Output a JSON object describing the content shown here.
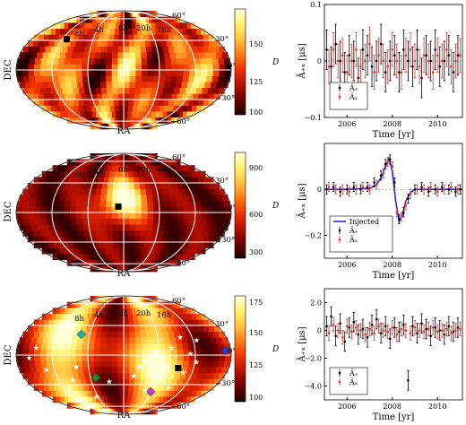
{
  "figure": {
    "colors": {
      "heat": [
        "#200000",
        "#6e0000",
        "#b81000",
        "#f03200",
        "#ff7a18",
        "#ffc23a",
        "#fff36e",
        "#ffffd8"
      ],
      "series_plus": "#000000",
      "series_cross": "#e8302a",
      "injected": "#1f2be6",
      "grid": "#ffffff",
      "star": "#ffffff",
      "pulsar_colors": [
        "#1fb09a",
        "#1a8c2a",
        "#c040c0",
        "#1f40d0"
      ]
    },
    "skymaps": [
      {
        "id": "top",
        "ylabel": "DEC",
        "xlabel": "RA",
        "ra_labels": [
          "8h",
          "4h",
          "0h",
          "20h",
          "16h"
        ],
        "dec_labels": [
          "60°",
          "30°",
          "0°",
          "−30°",
          "−60°"
        ],
        "colorbar": {
          "label": "D",
          "ticks": [
            "150",
            "125",
            "100"
          ]
        },
        "markers": [
          {
            "type": "square",
            "color": "#000000"
          }
        ]
      },
      {
        "id": "middle",
        "ylabel": "DEC",
        "xlabel": "RA",
        "ra_labels": [
          "8h",
          "4h",
          "0h",
          "20h",
          "16h"
        ],
        "dec_labels": [
          "60°",
          "30°",
          "0°",
          "−30°",
          "−60°"
        ],
        "colorbar": {
          "label": "D",
          "ticks": [
            "900",
            "600",
            "300"
          ]
        },
        "markers": [
          {
            "type": "square",
            "color": "#000000"
          }
        ]
      },
      {
        "id": "bottom",
        "ylabel": "DEC",
        "xlabel": "RA",
        "ra_labels": [
          "8h",
          "4h",
          "0h",
          "20h",
          "16h"
        ],
        "dec_labels": [
          "60°",
          "30°",
          "0°",
          "−30°",
          "−60°"
        ],
        "colorbar": {
          "label": "D",
          "ticks": [
            "175",
            "150",
            "125",
            "100"
          ]
        },
        "markers": [
          {
            "type": "square",
            "color": "#000000"
          },
          {
            "type": "diamond",
            "color": "#1fb09a"
          },
          {
            "type": "diamond",
            "color": "#1a8c2a"
          },
          {
            "type": "diamond",
            "color": "#c040c0"
          },
          {
            "type": "diamond",
            "color": "#1f40d0"
          },
          {
            "type": "star",
            "count": 22,
            "color": "#ffffff"
          }
        ]
      }
    ]
  },
  "chart_data": [
    {
      "type": "scatter",
      "title": "",
      "xlabel": "Time [yr]",
      "ylabel": "Â₊ₓ [μs]",
      "xlim": [
        2005,
        2011.1
      ],
      "ylim": [
        -0.1,
        0.1
      ],
      "xticks": [
        "2006",
        "2008",
        "2010"
      ],
      "yticks": [
        "0.1",
        "0",
        "−0.1"
      ],
      "legend": {
        "placement": "lower-left",
        "entries": [
          "Â₊",
          "Âₓ"
        ]
      },
      "series": [
        {
          "name": "Â₊",
          "color": "#000000",
          "error_bars": true,
          "x": [
            2005.1,
            2005.3,
            2005.5,
            2005.7,
            2005.9,
            2006.1,
            2006.3,
            2006.5,
            2006.7,
            2006.9,
            2007.1,
            2007.3,
            2007.5,
            2007.7,
            2007.9,
            2008.1,
            2008.3,
            2008.5,
            2008.7,
            2008.9,
            2009.1,
            2009.3,
            2009.5,
            2009.7,
            2009.9,
            2010.1,
            2010.3,
            2010.5,
            2010.7,
            2010.9
          ],
          "y": [
            0.02,
            -0.01,
            0.03,
            0.0,
            -0.02,
            0.01,
            0.0,
            -0.03,
            0.02,
            0.01,
            -0.01,
            0.0,
            0.03,
            -0.02,
            0.0,
            0.01,
            -0.02,
            0.02,
            0.0,
            -0.01,
            0.02,
            -0.03,
            0.01,
            0.0,
            0.02,
            -0.01,
            0.0,
            0.01,
            -0.02,
            0.01
          ],
          "err": 0.035
        },
        {
          "name": "Âₓ",
          "color": "#e8302a",
          "error_bars": true,
          "x": [
            2005.2,
            2005.4,
            2005.6,
            2005.8,
            2006.0,
            2006.2,
            2006.4,
            2006.6,
            2006.8,
            2007.0,
            2007.2,
            2007.4,
            2007.6,
            2007.8,
            2008.0,
            2008.2,
            2008.4,
            2008.6,
            2008.8,
            2009.0,
            2009.2,
            2009.4,
            2009.6,
            2009.8,
            2010.0,
            2010.2,
            2010.4,
            2010.6,
            2010.8,
            2011.0
          ],
          "y": [
            -0.01,
            0.02,
            0.0,
            0.01,
            -0.02,
            0.0,
            0.02,
            -0.01,
            0.0,
            0.03,
            -0.02,
            0.01,
            0.0,
            -0.01,
            0.02,
            0.0,
            -0.02,
            0.01,
            0.02,
            0.0,
            -0.01,
            0.01,
            0.0,
            -0.02,
            0.01,
            0.0,
            0.02,
            -0.01,
            0.0,
            0.01
          ],
          "err": 0.03
        }
      ]
    },
    {
      "type": "scatter",
      "title": "",
      "xlabel": "Time [yr]",
      "ylabel": "Â₊ₓ [μs]",
      "xlim": [
        2005,
        2011.1
      ],
      "ylim": [
        -0.3,
        0.2
      ],
      "xticks": [
        "2006",
        "2008",
        "2010"
      ],
      "yticks": [
        "0",
        "−0.2"
      ],
      "legend": {
        "placement": "lower-left",
        "entries": [
          "Injected",
          "Â₊",
          "Âₓ"
        ]
      },
      "series": [
        {
          "name": "Injected",
          "color": "#1f2be6",
          "line": true,
          "x": [
            2005.0,
            2006.0,
            2007.0,
            2007.3,
            2007.5,
            2007.7,
            2007.85,
            2008.0,
            2008.15,
            2008.3,
            2008.45,
            2008.6,
            2008.8,
            2009.0,
            2009.5,
            2010.0,
            2011.1
          ],
          "y": [
            0.0,
            0.0,
            0.005,
            0.02,
            0.05,
            0.1,
            0.135,
            0.08,
            -0.05,
            -0.14,
            -0.11,
            -0.05,
            -0.015,
            0.0,
            0.0,
            0.0,
            0.0
          ]
        },
        {
          "name": "Â₊",
          "color": "#000000",
          "error_bars": true,
          "x": [
            2005.1,
            2005.4,
            2005.7,
            2006.0,
            2006.3,
            2006.6,
            2006.9,
            2007.2,
            2007.5,
            2007.7,
            2007.9,
            2008.1,
            2008.3,
            2008.5,
            2008.7,
            2009.0,
            2009.3,
            2009.6,
            2009.9,
            2010.2,
            2010.5,
            2010.8,
            2011.0
          ],
          "y": [
            0.0,
            0.01,
            -0.01,
            0.0,
            0.01,
            0.0,
            0.01,
            0.03,
            0.06,
            0.11,
            0.13,
            0.03,
            -0.13,
            -0.1,
            -0.04,
            0.0,
            0.01,
            -0.01,
            0.0,
            0.01,
            0.0,
            -0.01,
            0.0
          ],
          "err": 0.02
        },
        {
          "name": "Âₓ",
          "color": "#e8302a",
          "error_bars": true,
          "x": [
            2005.2,
            2005.5,
            2005.8,
            2006.1,
            2006.4,
            2006.7,
            2007.0,
            2007.3,
            2007.6,
            2007.8,
            2008.0,
            2008.2,
            2008.4,
            2008.6,
            2008.8,
            2009.1,
            2009.4,
            2009.7,
            2010.0,
            2010.3,
            2010.6,
            2010.9
          ],
          "y": [
            0.01,
            0.0,
            0.0,
            -0.01,
            0.0,
            0.01,
            0.0,
            0.02,
            0.07,
            0.12,
            0.1,
            -0.1,
            -0.12,
            -0.07,
            -0.02,
            0.0,
            0.0,
            0.01,
            -0.01,
            0.0,
            0.01,
            0.0
          ],
          "err": 0.02
        }
      ]
    },
    {
      "type": "scatter",
      "title": "",
      "xlabel": "Time [yr]",
      "ylabel": "Â₊ₓ [μs]",
      "xlim": [
        2005,
        2011.1
      ],
      "ylim": [
        -5.0,
        3.0
      ],
      "xticks": [
        "2006",
        "2008",
        "2010"
      ],
      "yticks": [
        "2.0",
        "0",
        "−2.0",
        "−4.0"
      ],
      "legend": {
        "placement": "lower-left",
        "entries": [
          "Â₊",
          "Âₓ"
        ]
      },
      "series": [
        {
          "name": "Â₊",
          "color": "#000000",
          "error_bars": true,
          "x": [
            2005.1,
            2005.3,
            2005.5,
            2005.7,
            2005.9,
            2006.1,
            2006.3,
            2006.5,
            2006.7,
            2006.9,
            2007.1,
            2007.3,
            2007.5,
            2007.7,
            2007.9,
            2008.1,
            2008.3,
            2008.5,
            2008.7,
            2008.9,
            2009.1,
            2009.3,
            2009.5,
            2009.7,
            2009.9,
            2010.1,
            2010.3,
            2010.5,
            2010.7,
            2010.9
          ],
          "y": [
            0.3,
            1.0,
            -0.4,
            0.5,
            -0.8,
            0.2,
            0.6,
            -0.3,
            0.1,
            -0.5,
            0.4,
            0.8,
            -0.2,
            0.3,
            -0.6,
            0.2,
            -0.1,
            0.4,
            -3.6,
            0.3,
            -0.2,
            0.5,
            0.1,
            -0.4,
            0.2,
            0.0,
            -0.3,
            0.3,
            -0.1,
            0.2
          ],
          "err": 0.7
        },
        {
          "name": "Âₓ",
          "color": "#e8302a",
          "error_bars": true,
          "x": [
            2005.2,
            2005.4,
            2005.6,
            2005.8,
            2006.0,
            2006.2,
            2006.4,
            2006.6,
            2006.8,
            2007.0,
            2007.2,
            2007.4,
            2007.6,
            2007.8,
            2008.0,
            2008.2,
            2008.4,
            2008.6,
            2008.8,
            2009.0,
            2009.2,
            2009.4,
            2009.6,
            2009.8,
            2010.0,
            2010.2,
            2010.4,
            2010.6,
            2010.8,
            2011.0
          ],
          "y": [
            -0.2,
            0.4,
            0.0,
            -0.5,
            0.3,
            -0.1,
            0.2,
            0.0,
            -0.3,
            0.1,
            -0.2,
            0.3,
            0.0,
            -0.1,
            0.2,
            -0.3,
            0.1,
            0.0,
            -0.2,
            0.2,
            0.0,
            -0.1,
            0.1,
            0.2,
            -0.1,
            0.0,
            0.1,
            -0.2,
            0.0,
            0.1
          ],
          "err": 0.5
        }
      ]
    }
  ]
}
